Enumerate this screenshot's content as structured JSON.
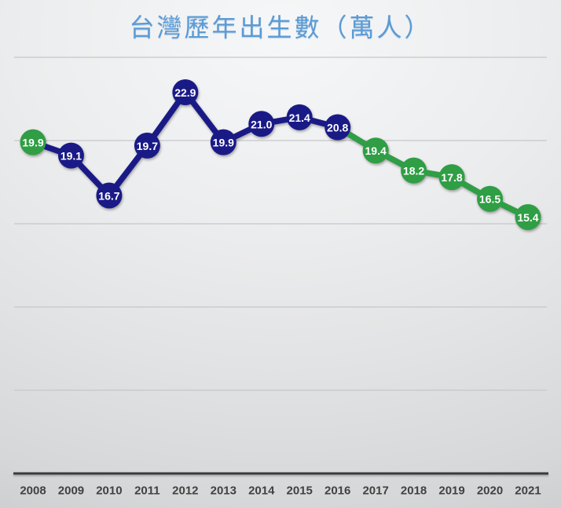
{
  "slide": {
    "title": "台灣歷年出生數（萬人）"
  },
  "chart_data": {
    "type": "line",
    "title": "台灣歷年出生數（萬人）",
    "xlabel": "",
    "ylabel": "",
    "categories": [
      "2008",
      "2009",
      "2010",
      "2011",
      "2012",
      "2013",
      "2014",
      "2015",
      "2016",
      "2017",
      "2018",
      "2019",
      "2020",
      "2021"
    ],
    "series": [
      {
        "values": [
          19.9,
          19.1,
          16.7,
          19.7,
          22.9,
          19.9,
          21.0,
          21.4,
          20.8,
          19.4,
          18.2,
          17.8,
          16.5,
          15.4
        ],
        "labels": [
          "19.9",
          "19.1",
          "16.7",
          "19.7",
          "22.9",
          "19.9",
          "21.0",
          "21.4",
          "20.8",
          "19.4",
          "18.2",
          "17.8",
          "16.5",
          "15.4"
        ],
        "point_colors": [
          "green",
          "navy",
          "navy",
          "navy",
          "navy",
          "navy",
          "navy",
          "navy",
          "navy",
          "green",
          "green",
          "green",
          "green",
          "green"
        ],
        "segment_colors": [
          "navy",
          "navy",
          "navy",
          "navy",
          "navy",
          "navy",
          "navy",
          "navy",
          "green",
          "green",
          "green",
          "green",
          "green"
        ]
      }
    ],
    "colors": {
      "navy": "#1a1a87",
      "green": "#2f9e44",
      "title": "#5b9bd5",
      "axis_line": "#3b3b3b",
      "gridline": "#c6c7c8",
      "tick_label": "#414141",
      "data_label": "#ffffff"
    },
    "ylim": [
      0,
      25
    ],
    "grid_interval": 5,
    "grid": true,
    "legend": false,
    "data_labels": true
  }
}
